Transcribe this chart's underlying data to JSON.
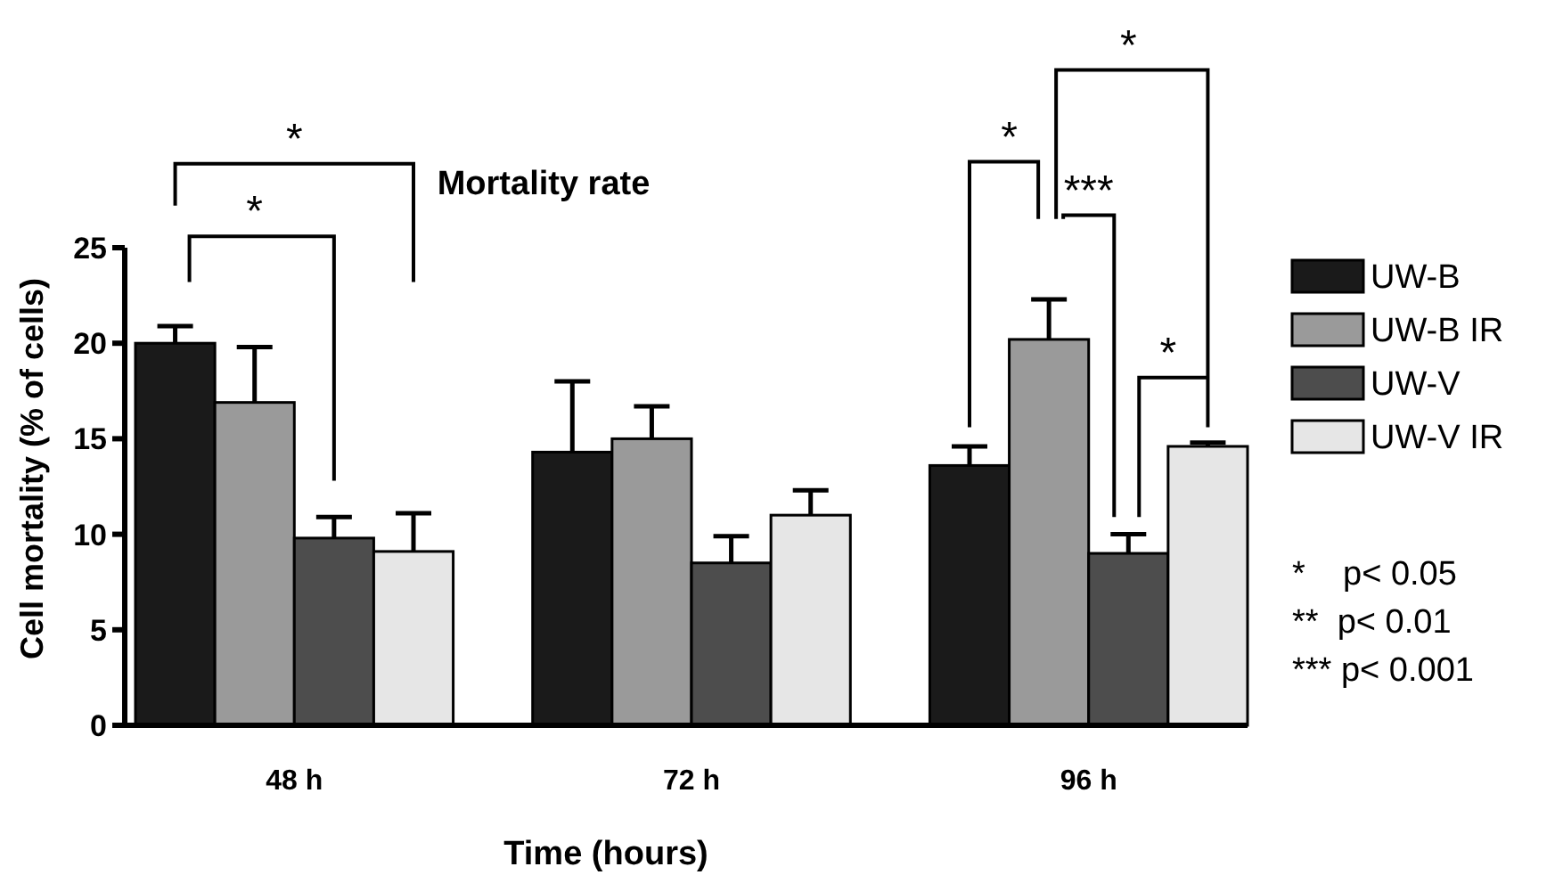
{
  "chart_data": {
    "type": "bar",
    "title": "Mortality rate",
    "xlabel": "Time (hours)",
    "ylabel": "Cell mortality (% of cells)",
    "categories": [
      "48 h",
      "72 h",
      "96 h"
    ],
    "series": [
      {
        "name": "UW-B",
        "color": "#1a1a1a",
        "values": [
          20.0,
          14.3,
          13.6
        ],
        "errors": [
          0.9,
          3.7,
          1.0
        ]
      },
      {
        "name": "UW-B IR",
        "color": "#9a9a9a",
        "values": [
          16.9,
          15.0,
          20.2
        ],
        "errors": [
          2.9,
          1.7,
          2.1
        ]
      },
      {
        "name": "UW-V",
        "color": "#4d4d4d",
        "values": [
          9.8,
          8.5,
          9.0
        ],
        "errors": [
          1.1,
          1.4,
          1.0
        ]
      },
      {
        "name": "UW-V IR",
        "color": "#e6e6e6",
        "values": [
          9.1,
          11.0,
          14.6
        ],
        "errors": [
          2.0,
          1.3,
          0.2
        ]
      }
    ],
    "ylim": [
      0,
      25
    ],
    "yticks": [
      0,
      5,
      10,
      15,
      20,
      25
    ],
    "grid": false,
    "legend": "right",
    "annotations": [
      "*",
      "*",
      "*",
      "*",
      "***",
      "*",
      "*    p< 0.05",
      "**  p< 0.01",
      "*** p< 0.001"
    ]
  }
}
